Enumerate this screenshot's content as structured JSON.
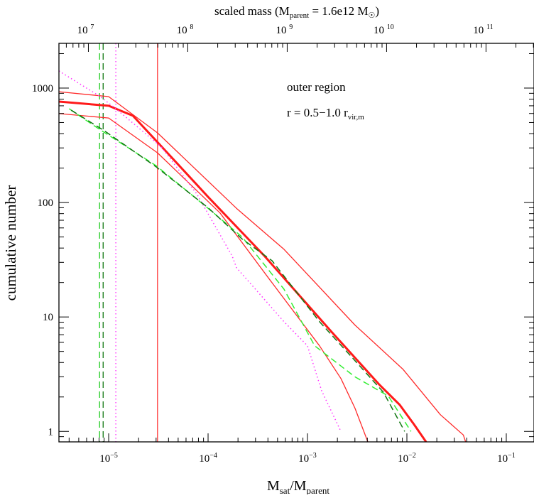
{
  "chart_data": {
    "type": "line",
    "top_title": "scaled mass (M",
    "top_title_sub": "parent",
    "top_title_rest": " = 1.6e12 M",
    "top_title_end": ")",
    "xlabel_main": "M",
    "xlabel_sub1": "sat",
    "xlabel_mid": "/M",
    "xlabel_sub2": "parent",
    "ylabel": "cumulative number",
    "xscale": "log",
    "yscale": "log",
    "xlim": [
      3.16e-06,
      0.19
    ],
    "ylim": [
      0.81,
      2460
    ],
    "parent_mass": 1600000000000.0,
    "x_ticks": [
      {
        "value": 1e-05,
        "base": "10",
        "exp": "−5"
      },
      {
        "value": 0.0001,
        "base": "10",
        "exp": "−4"
      },
      {
        "value": 0.001,
        "base": "10",
        "exp": "−3"
      },
      {
        "value": 0.01,
        "base": "10",
        "exp": "−2"
      },
      {
        "value": 0.1,
        "base": "10",
        "exp": "−1"
      }
    ],
    "top_ticks": [
      {
        "value": 10000000.0,
        "base": "10",
        "exp": "7"
      },
      {
        "value": 100000000.0,
        "base": "10",
        "exp": "8"
      },
      {
        "value": 1000000000.0,
        "base": "10",
        "exp": "9"
      },
      {
        "value": 10000000000.0,
        "base": "10",
        "exp": "10"
      },
      {
        "value": 100000000000.0,
        "base": "10",
        "exp": "11"
      }
    ],
    "y_ticks": [
      {
        "value": 1,
        "label": "1"
      },
      {
        "value": 10,
        "label": "10"
      },
      {
        "value": 100,
        "label": "100"
      },
      {
        "value": 1000,
        "label": "1000"
      }
    ],
    "annotations": {
      "region": "outer region",
      "radius_prefix": "r  =  0.5−1.0 r",
      "radius_sub": "vir,m"
    },
    "grid": false,
    "legend": "none",
    "vertical_lines": [
      {
        "x": 8.1e-06,
        "color": "#22cc22",
        "style": "dashed"
      },
      {
        "x": 8.8e-06,
        "color": "#117711",
        "style": "dashed"
      },
      {
        "x": 1.18e-05,
        "color": "#ff22ff",
        "style": "dotted"
      },
      {
        "x": 3.1e-05,
        "color": "#ff3333",
        "style": "solid"
      }
    ],
    "series": [
      {
        "color": "#ff2a2a",
        "style": "solid",
        "width": 1.3,
        "x": [
          3.16e-06,
          1e-05,
          3.1e-05,
          0.000193,
          0.00058,
          0.003,
          0.0091,
          0.0217,
          0.037,
          0.039
        ],
        "y": [
          930,
          842,
          406,
          89,
          39,
          8.5,
          3.5,
          1.4,
          0.93,
          0.81
        ]
      },
      {
        "color": "#ff1a1a",
        "style": "solid",
        "width": 3,
        "x": [
          3.16e-06,
          1e-05,
          1.75e-05,
          3.1e-05,
          0.0001,
          0.00037,
          0.00175,
          0.0052,
          0.0085,
          0.0118,
          0.0156
        ],
        "y": [
          762,
          700,
          573,
          337,
          112,
          34,
          7.4,
          2.6,
          1.7,
          1.15,
          0.81
        ]
      },
      {
        "color": "#ff2a2a",
        "style": "solid",
        "width": 1.3,
        "x": [
          3.16e-06,
          1e-05,
          3.1e-05,
          0.000132,
          0.00042,
          0.00132,
          0.00217,
          0.003,
          0.00405
        ],
        "y": [
          598,
          548,
          272,
          81,
          21,
          5.6,
          2.9,
          1.6,
          0.81
        ]
      },
      {
        "color": "#ff33ff",
        "style": "dotted",
        "width": 1.5,
        "x": [
          3.16e-06,
          8.1e-06,
          1.18e-05,
          3.4e-05,
          7.7e-05,
          0.000175,
          0.000193,
          0.00058,
          0.001,
          0.00139,
          0.00217
        ],
        "y": [
          1410,
          850,
          660,
          305,
          119,
          34,
          27,
          9.1,
          5.6,
          2.26,
          1.0
        ]
      },
      {
        "color": "#33ee33",
        "style": "dashed",
        "width": 1.5,
        "x": [
          4e-06,
          8.1e-06,
          3e-05,
          0.0001,
          0.00022,
          0.00058,
          0.00118,
          0.003,
          0.0065,
          0.011
        ],
        "y": [
          660,
          436,
          210,
          89,
          50,
          17.5,
          5.6,
          3.0,
          2.04,
          1.0
        ]
      },
      {
        "color": "#117711",
        "style": "dashed",
        "width": 1.5,
        "x": [
          4.2e-06,
          8.8e-06,
          3e-05,
          0.0001,
          0.00022,
          0.00044,
          0.00132,
          0.0027,
          0.0058,
          0.0095
        ],
        "y": [
          640,
          430,
          205,
          90,
          48,
          31,
          9.1,
          4.6,
          2.2,
          1.0
        ]
      }
    ]
  }
}
